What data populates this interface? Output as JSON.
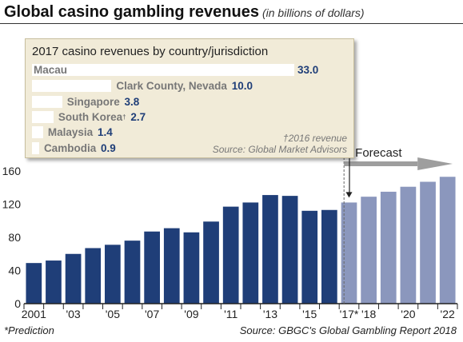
{
  "title": "Global casino gambling revenues",
  "subtitle": "(in billions of dollars)",
  "footnote": "*Prediction",
  "source": "Source: GBGC's Global Gambling Report 2018",
  "chart_data": {
    "type": "bar",
    "categories": [
      "2001",
      "2002",
      "2003",
      "2004",
      "2005",
      "2006",
      "2007",
      "2008",
      "2009",
      "2010",
      "2011",
      "2012",
      "2013",
      "2014",
      "2015",
      "2016",
      "2017",
      "2018",
      "2019",
      "2020",
      "2021",
      "2022"
    ],
    "values": [
      49,
      52,
      60,
      67,
      71,
      76,
      87,
      91,
      86,
      99,
      117,
      122,
      131,
      130,
      112,
      113,
      122,
      129,
      135,
      141,
      147,
      153
    ],
    "tick_labels": [
      "2001",
      "",
      "'03",
      "",
      "'05",
      "",
      "'07",
      "",
      "'09",
      "",
      "'11",
      "",
      "'13",
      "",
      "'15",
      "",
      "'17*",
      "'18",
      "",
      "'20",
      "",
      "'22"
    ],
    "ylim": [
      0,
      160
    ],
    "yticks": [
      0,
      40,
      80,
      120,
      160
    ],
    "forecast_start_index": 16,
    "forecast_label": "Forecast",
    "colors": {
      "actual": "#1f3e78",
      "forecast": "#8b97bd",
      "arrow": "#9e9e9e"
    },
    "grid": false
  },
  "inset": {
    "title": "2017 casino revenues by country/jurisdiction",
    "max_value": 33.0,
    "items": [
      {
        "label": "Macau",
        "value": 33.0,
        "value_text": "33.0",
        "sup": ""
      },
      {
        "label": "Clark County, Nevada",
        "value": 10.0,
        "value_text": "10.0",
        "sup": ""
      },
      {
        "label": "Singapore",
        "value": 3.8,
        "value_text": "3.8",
        "sup": ""
      },
      {
        "label": "South Korea",
        "value": 2.7,
        "value_text": "2.7",
        "sup": "†"
      },
      {
        "label": "Malaysia",
        "value": 1.4,
        "value_text": "1.4",
        "sup": ""
      },
      {
        "label": "Cambodia",
        "value": 0.9,
        "value_text": "0.9",
        "sup": ""
      }
    ],
    "note_line1": "†2016 revenue",
    "note_line2": "Source: Global Market Advisors"
  }
}
